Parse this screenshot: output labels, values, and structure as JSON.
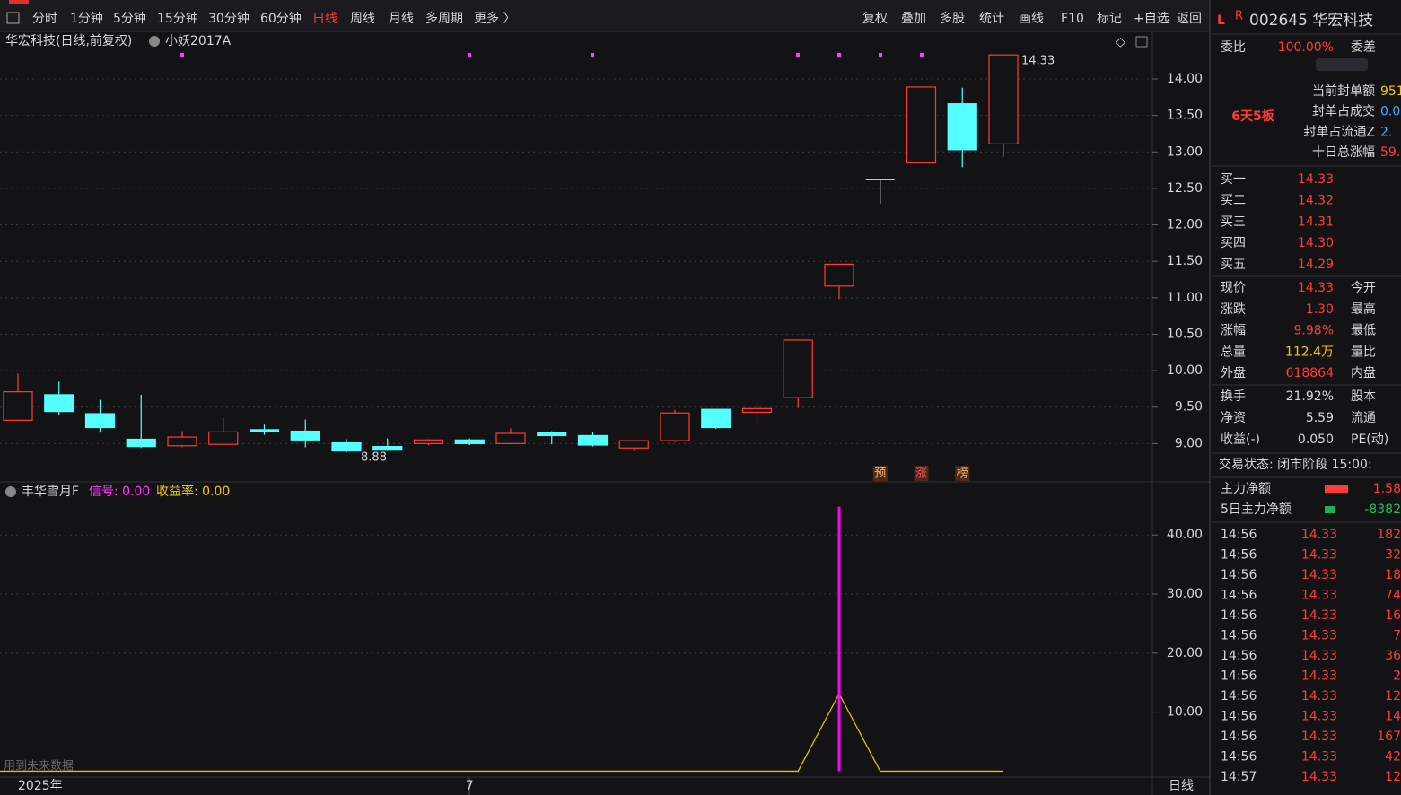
{
  "toolbar": {
    "periods": [
      "分时",
      "1分钟",
      "5分钟",
      "15分钟",
      "30分钟",
      "60分钟",
      "日线",
      "周线",
      "月线",
      "多周期",
      "更多 〉"
    ],
    "tools": [
      "复权",
      "叠加",
      "多股",
      "统计",
      "画线",
      "F10",
      "标记",
      "+自选",
      "返回"
    ]
  },
  "chart_data": [
    {
      "type": "candlestick",
      "title": "华宏科技(日线,前复权)",
      "indicator": "小妖2017A",
      "categories": [
        "2025年",
        null,
        null,
        null,
        null,
        null,
        null,
        null,
        null,
        null,
        null,
        "7",
        null,
        null,
        null,
        null,
        null,
        null,
        null,
        null,
        null,
        null,
        null,
        null,
        null
      ],
      "open": [
        9.32,
        9.67,
        9.41,
        9.06,
        8.97,
        8.99,
        9.19,
        9.17,
        9.01,
        8.96,
        9.0,
        9.05,
        9.0,
        9.15,
        9.11,
        8.94,
        9.04,
        9.47,
        9.43,
        9.63,
        11.16,
        12.62,
        12.85,
        13.66,
        13.11
      ],
      "high": [
        9.96,
        9.85,
        9.6,
        9.67,
        9.17,
        9.36,
        9.26,
        9.33,
        9.06,
        9.07,
        9.06,
        9.07,
        9.21,
        9.17,
        9.16,
        9.04,
        9.46,
        9.47,
        9.57,
        10.42,
        11.46,
        12.62,
        13.89,
        13.88,
        14.33
      ],
      "low": [
        9.32,
        9.39,
        9.15,
        8.94,
        8.95,
        8.99,
        9.12,
        8.95,
        8.88,
        8.9,
        8.98,
        8.98,
        8.99,
        8.99,
        8.96,
        8.9,
        9.02,
        9.2,
        9.27,
        9.49,
        10.98,
        12.29,
        12.85,
        12.79,
        12.93
      ],
      "close": [
        9.71,
        9.44,
        9.22,
        8.96,
        9.09,
        9.16,
        9.17,
        9.05,
        8.9,
        8.91,
        9.05,
        9.0,
        9.14,
        9.11,
        8.98,
        9.04,
        9.42,
        9.22,
        9.48,
        10.42,
        11.46,
        12.62,
        13.89,
        13.03,
        14.33
      ],
      "up_color": "#ff3b3b",
      "down_color": "#54ffff",
      "flat_color": "#e0e0e0",
      "high_label": 14.33,
      "low_label": 8.88,
      "signals": [
        "预",
        "涨",
        "榜"
      ],
      "ylim": [
        8.5,
        14.64
      ],
      "yticks": [
        {
          "value": 9,
          "label": "9.00"
        },
        {
          "value": 9.5,
          "label": "9.50"
        },
        {
          "value": 10,
          "label": "10.00"
        },
        {
          "value": 10.5,
          "label": "10.50"
        },
        {
          "value": 11,
          "label": "11.00"
        },
        {
          "value": 11.5,
          "label": "11.50"
        },
        {
          "value": 12,
          "label": "12.00"
        },
        {
          "value": 12.5,
          "label": "12.50"
        },
        {
          "value": 13,
          "label": "13.00"
        },
        {
          "value": 13.5,
          "label": "13.50"
        },
        {
          "value": 14,
          "label": "14.00"
        }
      ],
      "grid": true
    },
    {
      "type": "line",
      "title": "丰华雪月F",
      "signal_label": "信号: 0.00",
      "return_label": "收益率: 0.00",
      "note": "用到未来数据",
      "period": "日线",
      "series": [
        {
          "type": "line",
          "color": "#e0c000",
          "values": [
            0,
            0,
            0,
            0,
            0,
            0,
            0,
            0,
            0,
            0,
            0,
            0,
            0,
            0,
            0,
            0,
            0,
            0,
            0,
            0,
            13.1,
            0,
            0,
            0,
            0
          ]
        },
        {
          "type": "bar",
          "color": "#ff00ff",
          "values": [
            null,
            null,
            null,
            null,
            null,
            null,
            null,
            null,
            null,
            null,
            null,
            null,
            null,
            null,
            null,
            null,
            null,
            null,
            null,
            null,
            44.8,
            null,
            null,
            null,
            null
          ]
        }
      ],
      "ylim": [
        -1,
        49
      ],
      "yticks": [
        {
          "value": 10,
          "label": "10.00"
        },
        {
          "value": 20,
          "label": "20.00"
        },
        {
          "value": 30,
          "label": "30.00"
        },
        {
          "value": 40,
          "label": "40.00"
        }
      ],
      "grid": true
    }
  ],
  "quote_panel": {
    "flag_l": "L",
    "flag_r": "R",
    "code_name": "002645 华宏科技",
    "weibi": [
      "委比",
      "100.00%",
      "委差"
    ],
    "board": "6天5板",
    "seal_rows": [
      [
        "当前封单额",
        "951"
      ],
      [
        "封单占成交",
        "0.0"
      ],
      [
        "封单占流通Z",
        "2."
      ],
      [
        "十日总涨幅",
        "59."
      ]
    ],
    "bids": [
      [
        "买一",
        "14.33"
      ],
      [
        "买二",
        "14.32"
      ],
      [
        "买三",
        "14.31"
      ],
      [
        "买四",
        "14.30"
      ],
      [
        "买五",
        "14.29"
      ]
    ],
    "stats": [
      [
        "现价",
        "14.33",
        "今开"
      ],
      [
        "涨跌",
        "1.30",
        "最高"
      ],
      [
        "涨幅",
        "9.98%",
        "最低"
      ],
      [
        "总量",
        "112.4万",
        "量比"
      ],
      [
        "外盘",
        "618864",
        "内盘"
      ]
    ],
    "stats2": [
      [
        "换手",
        "21.92%",
        "股本"
      ],
      [
        "净资",
        "5.59",
        "流通"
      ],
      [
        "收益(-)",
        "0.050",
        "PE(动)"
      ]
    ],
    "trade_state": "交易状态: 闭市阶段 15:00:",
    "flows": [
      [
        "主力净额",
        "1.58"
      ],
      [
        "5日主力净额",
        "-8382"
      ]
    ],
    "ticks": [
      [
        "14:56",
        "14.33",
        "182"
      ],
      [
        "14:56",
        "14.33",
        "32"
      ],
      [
        "14:56",
        "14.33",
        "18"
      ],
      [
        "14:56",
        "14.33",
        "74"
      ],
      [
        "14:56",
        "14.33",
        "16"
      ],
      [
        "14:56",
        "14.33",
        "7"
      ],
      [
        "14:56",
        "14.33",
        "36"
      ],
      [
        "14:56",
        "14.33",
        "2"
      ],
      [
        "14:56",
        "14.33",
        "12"
      ],
      [
        "14:56",
        "14.33",
        "14"
      ],
      [
        "14:56",
        "14.33",
        "167"
      ],
      [
        "14:56",
        "14.33",
        "42"
      ],
      [
        "14:57",
        "14.33",
        "12"
      ]
    ]
  }
}
